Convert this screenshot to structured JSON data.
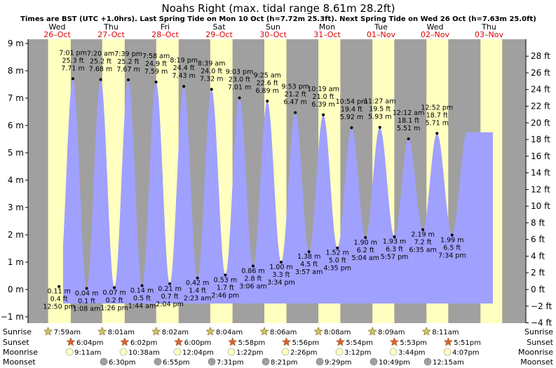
{
  "chart_data": {
    "type": "area",
    "title": "Noahs Right (max. tidal range 8.61m 28.2ft)",
    "subtitle": "Times are BST (UTC +1.0hrs). Last Spring Tide on Mon 10 Oct (h=7.72m 25.3ft). Next Spring Tide on Wed 26 Oct (h=7.63m 25.0ft)",
    "ylim_m": [
      -1.3,
      9
    ],
    "y_ticks_m": [
      "9 m",
      "8 m",
      "7 m",
      "6 m",
      "5 m",
      "4 m",
      "3 m",
      "2 m",
      "1 m",
      "0 m",
      "−1 m"
    ],
    "y_ticks_ft": [
      "28 ft",
      "26 ft",
      "24 ft",
      "22 ft",
      "20 ft",
      "18 ft",
      "16 ft",
      "14 ft",
      "12 ft",
      "10 ft",
      "8 ft",
      "6 ft",
      "4 ft",
      "2 ft",
      "0 ft",
      "−2 ft",
      "−4 ft"
    ],
    "days": [
      {
        "weekday": "Wed",
        "date": "26–Oct"
      },
      {
        "weekday": "Thu",
        "date": "27–Oct"
      },
      {
        "weekday": "Fri",
        "date": "28–Oct"
      },
      {
        "weekday": "Sat",
        "date": "29–Oct"
      },
      {
        "weekday": "Sun",
        "date": "30–Oct"
      },
      {
        "weekday": "Mon",
        "date": "31–Oct"
      },
      {
        "weekday": "Tue",
        "date": "01–Nov"
      },
      {
        "weekday": "Wed",
        "date": "02–Nov"
      },
      {
        "weekday": "Thu",
        "date": "03–Nov"
      }
    ],
    "tides": [
      {
        "type": "high",
        "day": 0,
        "time": "7:01 pm",
        "m": "7.71 m",
        "ft": "25.3 ft",
        "h": 7.71
      },
      {
        "type": "low",
        "day": 0,
        "time": "12:50 pm",
        "m": "0.11 m",
        "ft": "0.4 ft",
        "h": 0.11
      },
      {
        "type": "high",
        "day": 1,
        "time": "7:20 am",
        "m": "7.68 m",
        "ft": "25.2 ft",
        "h": 7.68
      },
      {
        "type": "low",
        "day": 1,
        "time": "1:08 am",
        "m": "0.04 m",
        "ft": "0.1 ft",
        "h": 0.04
      },
      {
        "type": "high",
        "day": 1,
        "time": "7:39 pm",
        "m": "7.67 m",
        "ft": "25.2 ft",
        "h": 7.67
      },
      {
        "type": "low",
        "day": 1,
        "time": "1:26 pm",
        "m": "0.07 m",
        "ft": "0.2 ft",
        "h": 0.07
      },
      {
        "type": "high",
        "day": 2,
        "time": "7:58 am",
        "m": "7.59 m",
        "ft": "24.9 ft",
        "h": 7.59
      },
      {
        "type": "low",
        "day": 2,
        "time": "1:44 am",
        "m": "0.14 m",
        "ft": "0.5 ft",
        "h": 0.14
      },
      {
        "type": "high",
        "day": 2,
        "time": "8:19 pm",
        "m": "7.43 m",
        "ft": "24.4 ft",
        "h": 7.43
      },
      {
        "type": "low",
        "day": 2,
        "time": "2:04 pm",
        "m": "0.21 m",
        "ft": "0.7 ft",
        "h": 0.21
      },
      {
        "type": "high",
        "day": 3,
        "time": "8:39 am",
        "m": "7.32 m",
        "ft": "24.0 ft",
        "h": 7.32
      },
      {
        "type": "low",
        "day": 3,
        "time": "2:23 am",
        "m": "0.42 m",
        "ft": "1.4 ft",
        "h": 0.42
      },
      {
        "type": "high",
        "day": 3,
        "time": "9:03 pm",
        "m": "7.01 m",
        "ft": "23.0 ft",
        "h": 7.01
      },
      {
        "type": "low",
        "day": 3,
        "time": "2:46 pm",
        "m": "0.53 m",
        "ft": "1.7 ft",
        "h": 0.53
      },
      {
        "type": "high",
        "day": 4,
        "time": "9:25 am",
        "m": "6.89 m",
        "ft": "22.6 ft",
        "h": 6.89
      },
      {
        "type": "low",
        "day": 4,
        "time": "3:06 am",
        "m": "0.86 m",
        "ft": "2.8 ft",
        "h": 0.86
      },
      {
        "type": "high",
        "day": 4,
        "time": "9:53 pm",
        "m": "6.47 m",
        "ft": "21.2 ft",
        "h": 6.47
      },
      {
        "type": "low",
        "day": 4,
        "time": "3:34 pm",
        "m": "1.00 m",
        "ft": "3.3 ft",
        "h": 1.0
      },
      {
        "type": "high",
        "day": 5,
        "time": "10:19 am",
        "m": "6.39 m",
        "ft": "21.0 ft",
        "h": 6.39
      },
      {
        "type": "low",
        "day": 5,
        "time": "3:57 am",
        "m": "1.38 m",
        "ft": "4.5 ft",
        "h": 1.38
      },
      {
        "type": "high",
        "day": 5,
        "time": "10:54 pm",
        "m": "5.92 m",
        "ft": "19.4 ft",
        "h": 5.92
      },
      {
        "type": "low",
        "day": 5,
        "time": "4:35 pm",
        "m": "1.52 m",
        "ft": "5.0 ft",
        "h": 1.52
      },
      {
        "type": "high",
        "day": 6,
        "time": "11:27 am",
        "m": "5.93 m",
        "ft": "19.5 ft",
        "h": 5.93
      },
      {
        "type": "low",
        "day": 6,
        "time": "5:04 am",
        "m": "1.90 m",
        "ft": "6.2 ft",
        "h": 1.9
      },
      {
        "type": "low",
        "day": 6,
        "time": "5:57 pm",
        "m": "1.93 m",
        "ft": "6.3 ft",
        "h": 1.93
      },
      {
        "type": "high",
        "day": 7,
        "time": "12:12 am",
        "m": "5.51 m",
        "ft": "18.1 ft",
        "h": 5.51
      },
      {
        "type": "low",
        "day": 7,
        "time": "6:35 am",
        "m": "2.19 m",
        "ft": "7.2 ft",
        "h": 2.19
      },
      {
        "type": "high",
        "day": 7,
        "time": "12:52 pm",
        "m": "5.71 m",
        "ft": "18.7 ft",
        "h": 5.71
      },
      {
        "type": "low",
        "day": 7,
        "time": "7:34 pm",
        "m": "1.99 m",
        "ft": "6.5 ft",
        "h": 1.99
      }
    ],
    "rows": {
      "labels": [
        "Sunrise",
        "Sunset",
        "Moonrise",
        "Moonset"
      ],
      "sunrise": [
        "7:59am",
        "8:01am",
        "8:02am",
        "8:04am",
        "8:06am",
        "8:08am",
        "8:09am",
        "8:11am"
      ],
      "sunset": [
        "6:04pm",
        "6:02pm",
        "6:00pm",
        "5:58pm",
        "5:56pm",
        "5:54pm",
        "5:53pm",
        "5:51pm"
      ],
      "moonrise": [
        "9:11am",
        "10:38am",
        "12:04pm",
        "1:22pm",
        "2:26pm",
        "3:12pm",
        "3:44pm",
        "4:07pm"
      ],
      "moonset": [
        "6:30pm",
        "6:55pm",
        "7:31pm",
        "8:21pm",
        "9:29pm",
        "10:49pm",
        "12:15am"
      ]
    }
  },
  "colors": {
    "night": "#a0a0a0",
    "day": "#ffffc0",
    "water": "#a0a0ff",
    "day_label": "#e00000",
    "sun_star": "#c8c864",
    "sunset_star": "#e06030",
    "moon_light": "#ffffc0",
    "moon_dark": "#a0a0a0"
  }
}
